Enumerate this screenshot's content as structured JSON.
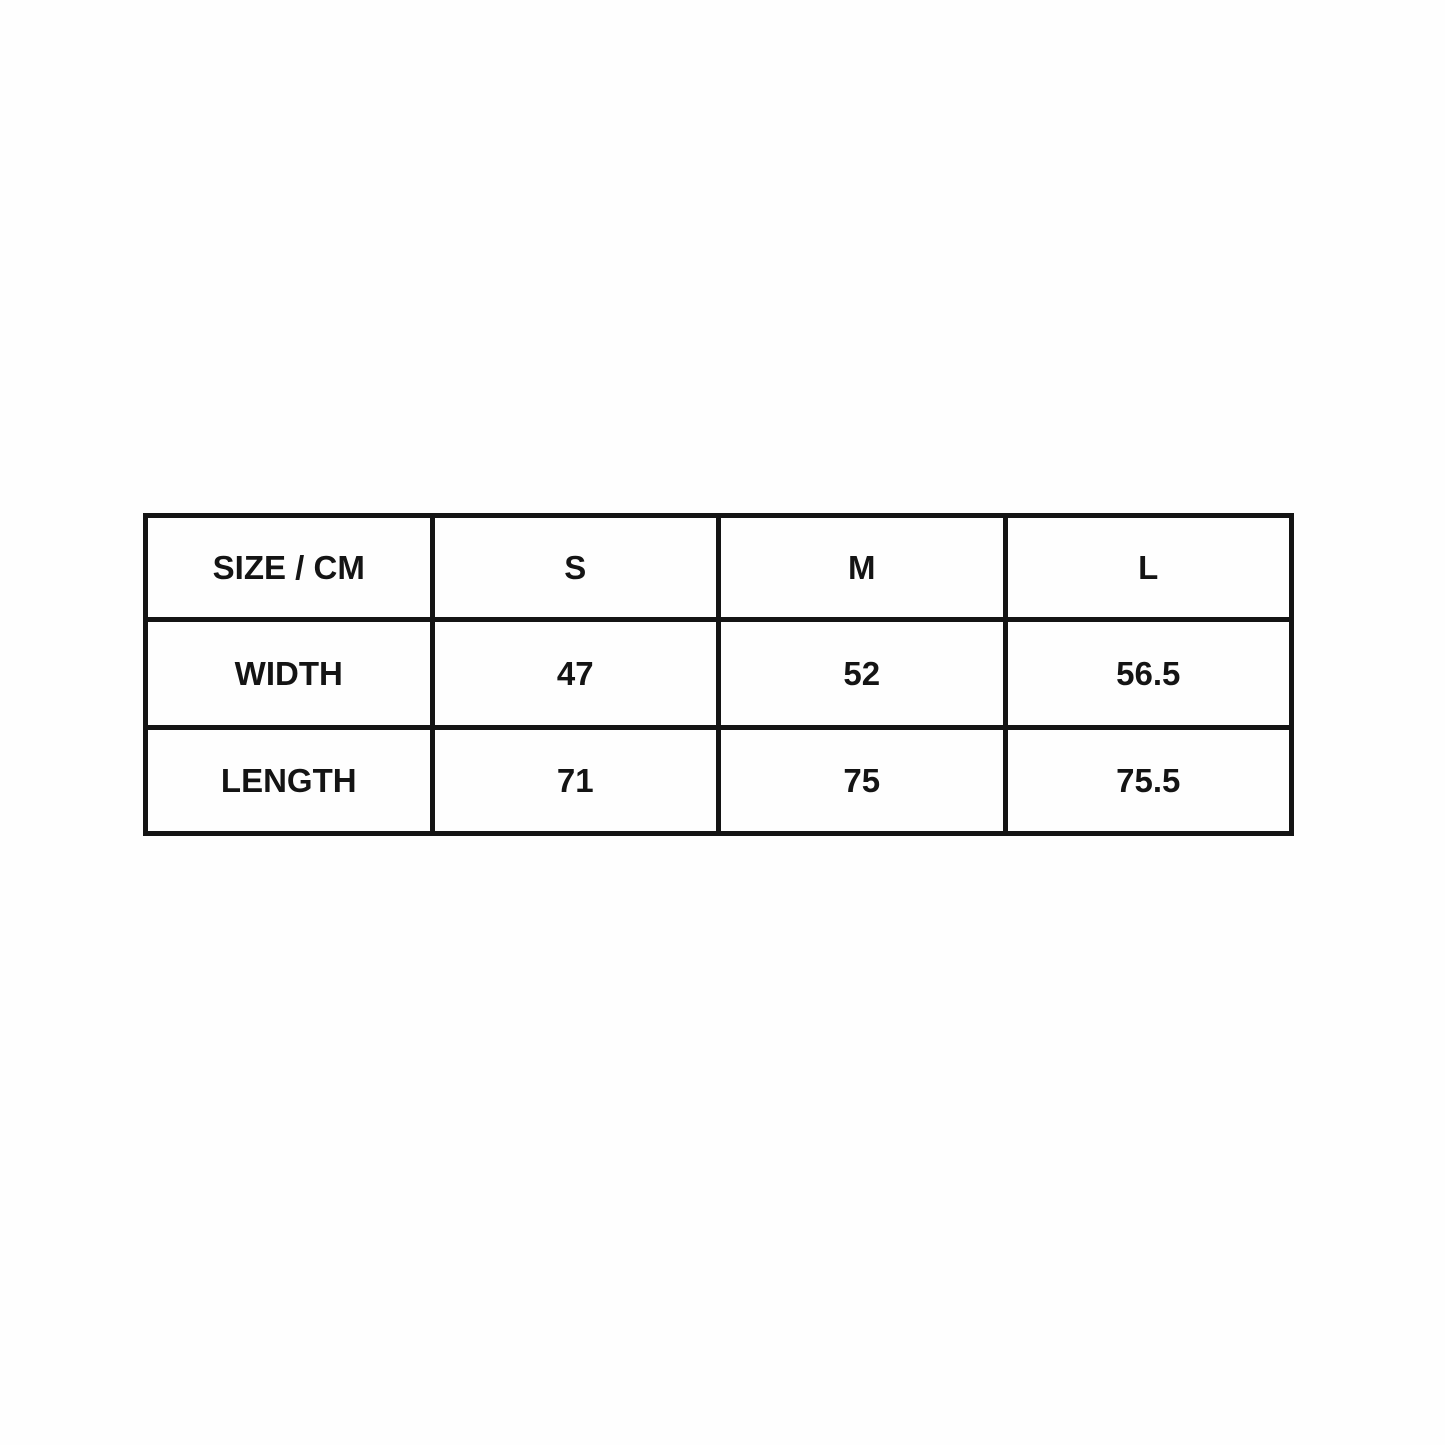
{
  "table": {
    "header": [
      "SIZE / CM",
      "S",
      "M",
      "L"
    ],
    "rows": [
      [
        "WIDTH",
        "47",
        "52",
        "56.5"
      ],
      [
        "LENGTH",
        "71",
        "75",
        "75.5"
      ]
    ]
  },
  "colors": {
    "border": "#141414",
    "text": "#141414",
    "background": "#fefefe"
  }
}
